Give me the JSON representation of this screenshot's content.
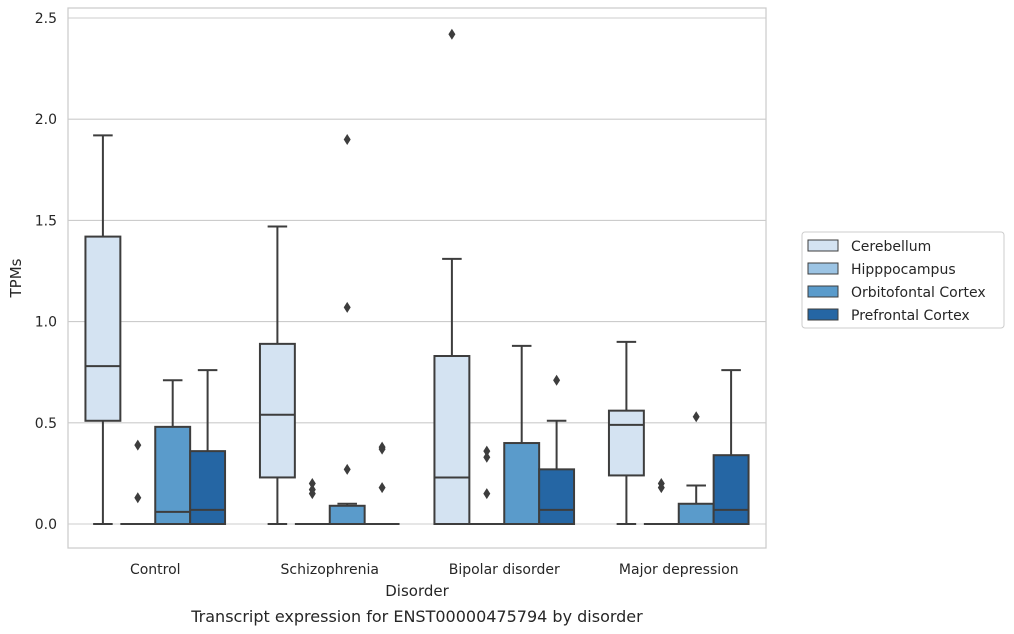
{
  "chart_data": {
    "type": "box",
    "caption": "Transcript expression for ENST00000475794 by disorder",
    "xlabel": "Disorder",
    "ylabel": "TPMs",
    "ylim": [
      -0.12,
      2.55
    ],
    "yticks": [
      "0.0",
      "0.5",
      "1.0",
      "1.5",
      "2.0",
      "2.5"
    ],
    "grid": true,
    "legend_position": "right",
    "categories": [
      "Control",
      "Schizophrenia",
      "Bipolar disorder",
      "Major depression"
    ],
    "series": [
      {
        "name": "Cerebellum",
        "color": "#d4e3f2",
        "boxes": [
          {
            "whislo": 0.0,
            "q1": 0.51,
            "med": 0.78,
            "q3": 1.42,
            "whishi": 1.92,
            "fliers": []
          },
          {
            "whislo": 0.0,
            "q1": 0.23,
            "med": 0.54,
            "q3": 0.89,
            "whishi": 1.47,
            "fliers": []
          },
          {
            "whislo": 0.0,
            "q1": 0.0,
            "med": 0.23,
            "q3": 0.83,
            "whishi": 1.31,
            "fliers": [
              2.42
            ]
          },
          {
            "whislo": 0.0,
            "q1": 0.24,
            "med": 0.49,
            "q3": 0.56,
            "whishi": 0.9,
            "fliers": []
          }
        ]
      },
      {
        "name": "Hipppocampus",
        "color": "#9cc4e4",
        "boxes": [
          {
            "whislo": 0.0,
            "q1": 0.0,
            "med": 0.0,
            "q3": 0.0,
            "whishi": 0.0,
            "fliers": [
              0.39,
              0.13
            ]
          },
          {
            "whislo": 0.0,
            "q1": 0.0,
            "med": 0.0,
            "q3": 0.0,
            "whishi": 0.0,
            "fliers": [
              0.2,
              0.17,
              0.15
            ]
          },
          {
            "whislo": 0.0,
            "q1": 0.0,
            "med": 0.0,
            "q3": 0.0,
            "whishi": 0.0,
            "fliers": [
              0.36,
              0.33,
              0.15
            ]
          },
          {
            "whislo": 0.0,
            "q1": 0.0,
            "med": 0.0,
            "q3": 0.0,
            "whishi": 0.0,
            "fliers": [
              0.2,
              0.18
            ]
          }
        ]
      },
      {
        "name": "Orbitofontal Cortex",
        "color": "#5a9bcb",
        "boxes": [
          {
            "whislo": 0.0,
            "q1": 0.0,
            "med": 0.06,
            "q3": 0.48,
            "whishi": 0.71,
            "fliers": []
          },
          {
            "whislo": 0.0,
            "q1": 0.0,
            "med": 0.0,
            "q3": 0.09,
            "whishi": 0.1,
            "fliers": [
              1.9,
              1.07,
              0.27
            ]
          },
          {
            "whislo": 0.0,
            "q1": 0.0,
            "med": 0.0,
            "q3": 0.4,
            "whishi": 0.88,
            "fliers": []
          },
          {
            "whislo": 0.0,
            "q1": 0.0,
            "med": 0.0,
            "q3": 0.1,
            "whishi": 0.19,
            "fliers": [
              0.53
            ]
          }
        ]
      },
      {
        "name": "Prefrontal Cortex",
        "color": "#2566a4",
        "boxes": [
          {
            "whislo": 0.0,
            "q1": 0.0,
            "med": 0.07,
            "q3": 0.36,
            "whishi": 0.76,
            "fliers": []
          },
          {
            "whislo": 0.0,
            "q1": 0.0,
            "med": 0.0,
            "q3": 0.0,
            "whishi": 0.0,
            "fliers": [
              0.38,
              0.37,
              0.18
            ]
          },
          {
            "whislo": 0.0,
            "q1": 0.0,
            "med": 0.07,
            "q3": 0.27,
            "whishi": 0.51,
            "fliers": [
              0.71
            ]
          },
          {
            "whislo": 0.0,
            "q1": 0.0,
            "med": 0.07,
            "q3": 0.34,
            "whishi": 0.76,
            "fliers": []
          }
        ]
      }
    ]
  }
}
